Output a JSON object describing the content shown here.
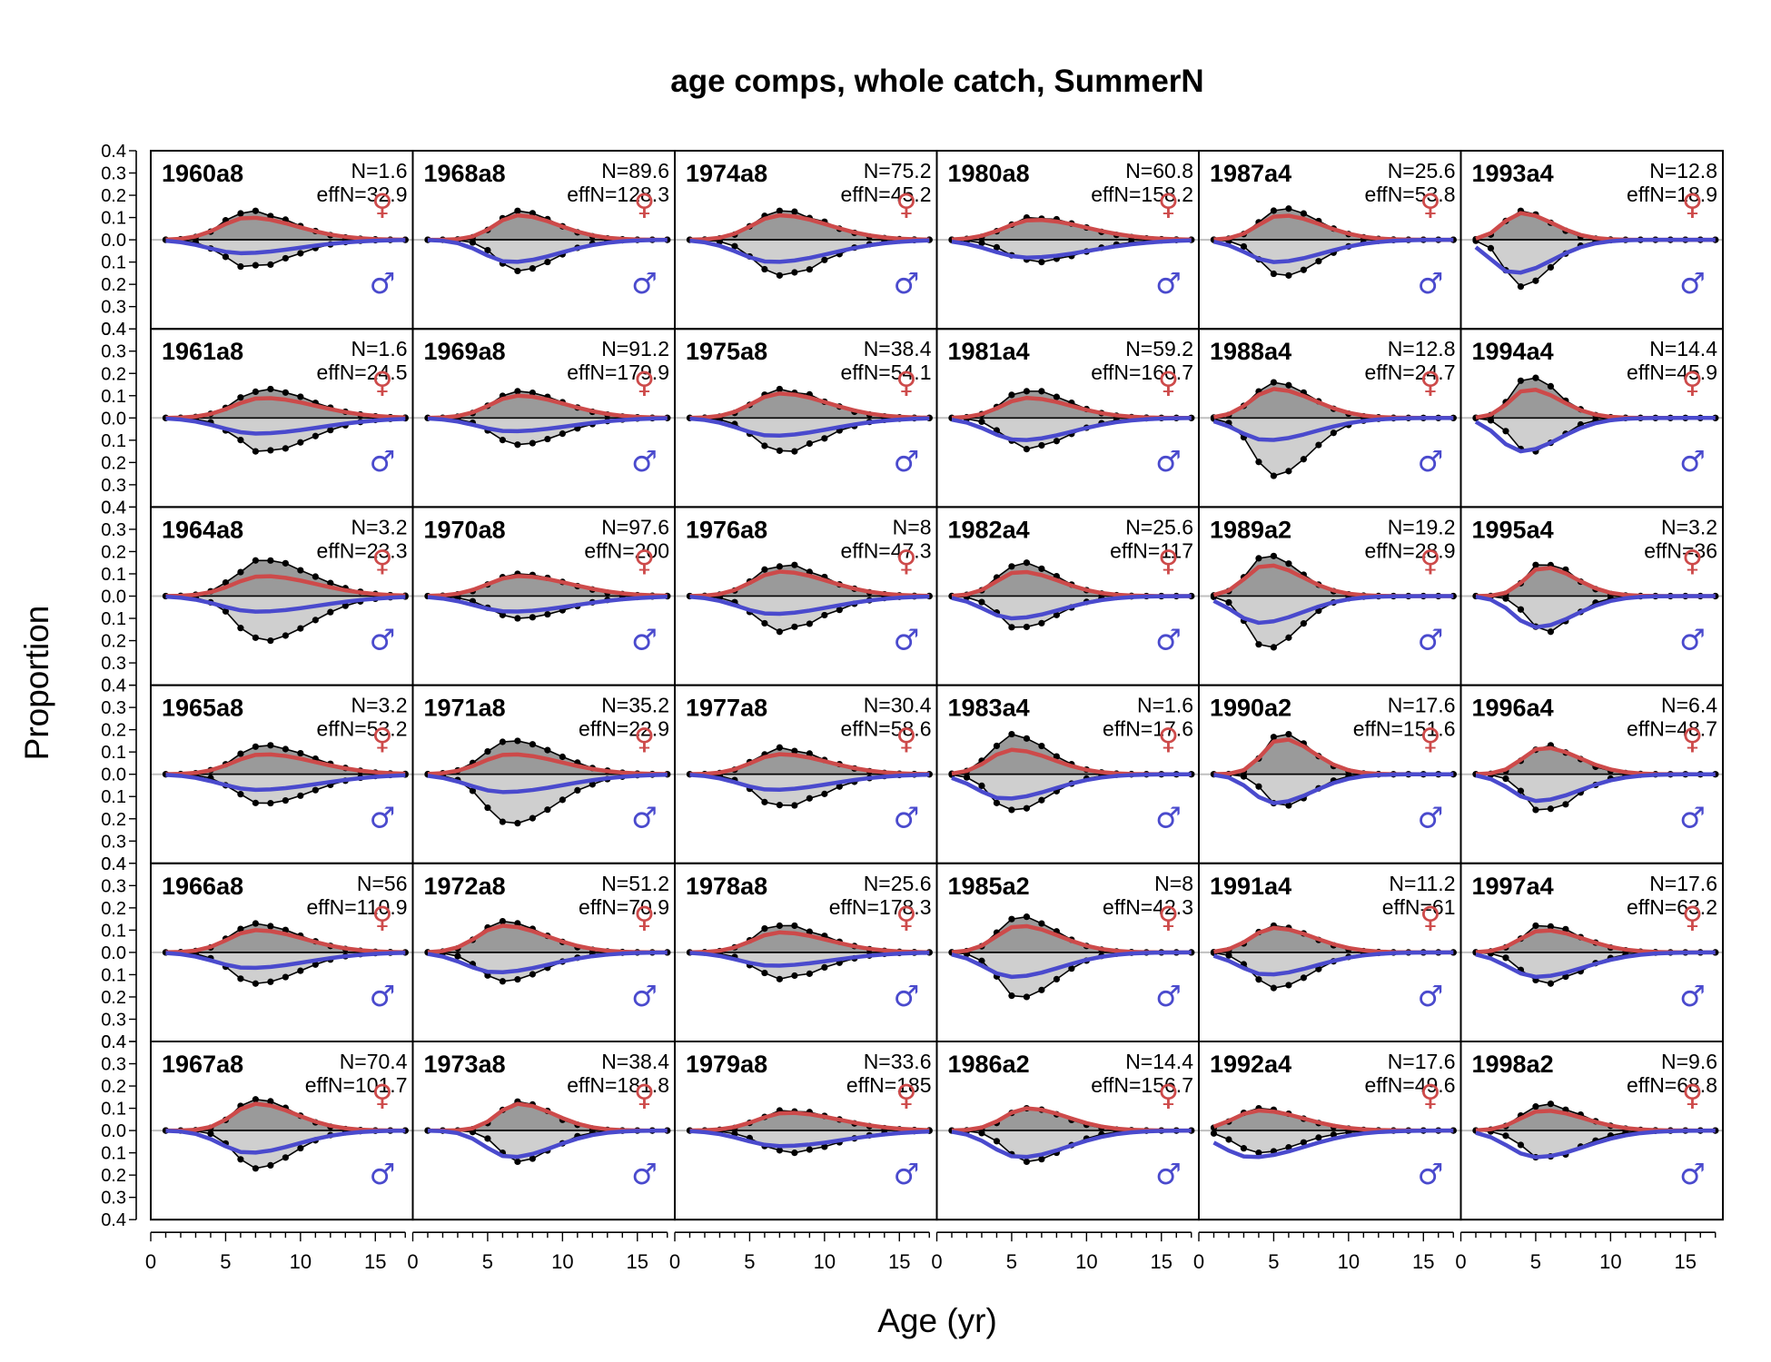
{
  "chart_data": {
    "type": "area",
    "title": "age comps, whole catch, SummerN",
    "xlabel": "Age (yr)",
    "ylabel": "Proportion",
    "xlim": [
      0,
      17.5
    ],
    "ylim": [
      -0.4,
      0.4
    ],
    "x_ticks": [
      "0",
      "5",
      "10",
      "15"
    ],
    "y_ticks": [
      "0.4",
      "0.3",
      "0.2",
      "0.1",
      "0.0",
      "0.1",
      "0.2",
      "0.3",
      "0.4"
    ],
    "grid": false,
    "female_symbol": "♀",
    "male_symbol": "♂",
    "colors": {
      "female_fit": "#cd4a4a",
      "male_fit": "#4a4acd",
      "female_fill": "#9a9a9a",
      "male_fill": "#cfcfcf",
      "zero_line": "#c0c0c0"
    },
    "series_names": [
      "observed female",
      "observed male",
      "expected female",
      "expected male"
    ],
    "rows": 6,
    "cols": 6,
    "panels": [
      {
        "label": "1960a8",
        "n": "N=1.6",
        "effn": "effN=32.9",
        "peak_age": 6.5,
        "spread": 2.4,
        "fem_peak": 0.1,
        "male_peak": 0.06,
        "obs_f": 0.13,
        "obs_m": 0.12
      },
      {
        "label": "1961a8",
        "n": "N=1.6",
        "effn": "effN=24.5",
        "peak_age": 7.5,
        "spread": 2.6,
        "fem_peak": 0.09,
        "male_peak": 0.07,
        "obs_f": 0.13,
        "obs_m": 0.15
      },
      {
        "label": "1964a8",
        "n": "N=3.2",
        "effn": "effN=23.3",
        "peak_age": 7.5,
        "spread": 2.6,
        "fem_peak": 0.09,
        "male_peak": 0.07,
        "obs_f": 0.16,
        "obs_m": 0.2
      },
      {
        "label": "1965a8",
        "n": "N=3.2",
        "effn": "effN=53.2",
        "peak_age": 7.5,
        "spread": 2.6,
        "fem_peak": 0.09,
        "male_peak": 0.07,
        "obs_f": 0.13,
        "obs_m": 0.13
      },
      {
        "label": "1966a8",
        "n": "N=56",
        "effn": "effN=110.9",
        "peak_age": 7.0,
        "spread": 2.4,
        "fem_peak": 0.1,
        "male_peak": 0.07,
        "obs_f": 0.13,
        "obs_m": 0.14
      },
      {
        "label": "1967a8",
        "n": "N=70.4",
        "effn": "effN=101.7",
        "peak_age": 7.0,
        "spread": 2.0,
        "fem_peak": 0.12,
        "male_peak": 0.1,
        "obs_f": 0.14,
        "obs_m": 0.17
      },
      {
        "label": "1968a8",
        "n": "N=89.6",
        "effn": "effN=128.3",
        "peak_age": 7.0,
        "spread": 2.0,
        "fem_peak": 0.11,
        "male_peak": 0.1,
        "obs_f": 0.13,
        "obs_m": 0.14
      },
      {
        "label": "1969a8",
        "n": "N=91.2",
        "effn": "effN=179.9",
        "peak_age": 7.0,
        "spread": 2.4,
        "fem_peak": 0.1,
        "male_peak": 0.06,
        "obs_f": 0.12,
        "obs_m": 0.12
      },
      {
        "label": "1970a8",
        "n": "N=97.6",
        "effn": "effN=200",
        "peak_age": 7.0,
        "spread": 2.6,
        "fem_peak": 0.09,
        "male_peak": 0.07,
        "obs_f": 0.1,
        "obs_m": 0.1
      },
      {
        "label": "1971a8",
        "n": "N=35.2",
        "effn": "effN=22.9",
        "peak_age": 6.5,
        "spread": 2.5,
        "fem_peak": 0.09,
        "male_peak": 0.08,
        "obs_f": 0.15,
        "obs_m": 0.22
      },
      {
        "label": "1972a8",
        "n": "N=51.2",
        "effn": "effN=70.9",
        "peak_age": 6.0,
        "spread": 2.2,
        "fem_peak": 0.12,
        "male_peak": 0.09,
        "obs_f": 0.14,
        "obs_m": 0.13
      },
      {
        "label": "1973a8",
        "n": "N=38.4",
        "effn": "effN=181.8",
        "peak_age": 7.0,
        "spread": 1.8,
        "fem_peak": 0.12,
        "male_peak": 0.12,
        "obs_f": 0.13,
        "obs_m": 0.14
      },
      {
        "label": "1974a8",
        "n": "N=75.2",
        "effn": "effN=45.2",
        "peak_age": 7.0,
        "spread": 2.4,
        "fem_peak": 0.11,
        "male_peak": 0.1,
        "obs_f": 0.13,
        "obs_m": 0.16
      },
      {
        "label": "1975a8",
        "n": "N=38.4",
        "effn": "effN=54.1",
        "peak_age": 7.0,
        "spread": 2.4,
        "fem_peak": 0.11,
        "male_peak": 0.08,
        "obs_f": 0.13,
        "obs_m": 0.15
      },
      {
        "label": "1976a8",
        "n": "N=8",
        "effn": "effN=47.3",
        "peak_age": 7.0,
        "spread": 2.4,
        "fem_peak": 0.11,
        "male_peak": 0.08,
        "obs_f": 0.14,
        "obs_m": 0.16
      },
      {
        "label": "1977a8",
        "n": "N=30.4",
        "effn": "effN=58.6",
        "peak_age": 7.0,
        "spread": 2.4,
        "fem_peak": 0.09,
        "male_peak": 0.07,
        "obs_f": 0.12,
        "obs_m": 0.14
      },
      {
        "label": "1978a8",
        "n": "N=25.6",
        "effn": "effN=178.3",
        "peak_age": 7.0,
        "spread": 2.4,
        "fem_peak": 0.09,
        "male_peak": 0.06,
        "obs_f": 0.12,
        "obs_m": 0.12
      },
      {
        "label": "1979a8",
        "n": "N=33.6",
        "effn": "effN=185",
        "peak_age": 7.5,
        "spread": 2.6,
        "fem_peak": 0.08,
        "male_peak": 0.07,
        "obs_f": 0.09,
        "obs_m": 0.1
      },
      {
        "label": "1980a8",
        "n": "N=60.8",
        "effn": "effN=158.2",
        "peak_age": 6.5,
        "spread": 2.6,
        "fem_peak": 0.09,
        "male_peak": 0.08,
        "obs_f": 0.1,
        "obs_m": 0.1
      },
      {
        "label": "1981a4",
        "n": "N=59.2",
        "effn": "effN=160.7",
        "peak_age": 6.0,
        "spread": 2.2,
        "fem_peak": 0.09,
        "male_peak": 0.1,
        "obs_f": 0.12,
        "obs_m": 0.14
      },
      {
        "label": "1982a4",
        "n": "N=25.6",
        "effn": "effN=117",
        "peak_age": 5.5,
        "spread": 2.0,
        "fem_peak": 0.11,
        "male_peak": 0.1,
        "obs_f": 0.15,
        "obs_m": 0.14
      },
      {
        "label": "1983a4",
        "n": "N=1.6",
        "effn": "effN=17.6",
        "peak_age": 5.0,
        "spread": 2.0,
        "fem_peak": 0.11,
        "male_peak": 0.11,
        "obs_f": 0.18,
        "obs_m": 0.16
      },
      {
        "label": "1985a2",
        "n": "N=8",
        "effn": "effN=42.3",
        "peak_age": 5.5,
        "spread": 2.0,
        "fem_peak": 0.12,
        "male_peak": 0.11,
        "obs_f": 0.16,
        "obs_m": 0.2
      },
      {
        "label": "1986a2",
        "n": "N=14.4",
        "effn": "effN=156.7",
        "peak_age": 6.0,
        "spread": 2.0,
        "fem_peak": 0.1,
        "male_peak": 0.12,
        "obs_f": 0.1,
        "obs_m": 0.14
      },
      {
        "label": "1987a4",
        "n": "N=25.6",
        "effn": "effN=53.8",
        "peak_age": 5.5,
        "spread": 2.0,
        "fem_peak": 0.11,
        "male_peak": 0.1,
        "obs_f": 0.14,
        "obs_m": 0.16
      },
      {
        "label": "1988a4",
        "n": "N=12.8",
        "effn": "effN=24.7",
        "peak_age": 5.0,
        "spread": 2.0,
        "fem_peak": 0.13,
        "male_peak": 0.1,
        "obs_f": 0.16,
        "obs_m": 0.26
      },
      {
        "label": "1989a2",
        "n": "N=19.2",
        "effn": "effN=28.9",
        "peak_age": 4.5,
        "spread": 1.8,
        "fem_peak": 0.14,
        "male_peak": 0.12,
        "obs_f": 0.18,
        "obs_m": 0.23
      },
      {
        "label": "1990a2",
        "n": "N=17.6",
        "effn": "effN=151.6",
        "peak_age": 5.5,
        "spread": 1.6,
        "fem_peak": 0.16,
        "male_peak": 0.13,
        "obs_f": 0.18,
        "obs_m": 0.14
      },
      {
        "label": "1991a4",
        "n": "N=11.2",
        "effn": "effN=61",
        "peak_age": 5.0,
        "spread": 2.0,
        "fem_peak": 0.11,
        "male_peak": 0.1,
        "obs_f": 0.12,
        "obs_m": 0.16
      },
      {
        "label": "1992a4",
        "n": "N=17.6",
        "effn": "effN=49.6",
        "peak_age": 4.0,
        "spread": 2.2,
        "fem_peak": 0.09,
        "male_peak": 0.12,
        "obs_f": 0.1,
        "obs_m": 0.1
      },
      {
        "label": "1993a4",
        "n": "N=12.8",
        "effn": "effN=18.9",
        "peak_age": 4.0,
        "spread": 1.6,
        "fem_peak": 0.12,
        "male_peak": 0.15,
        "obs_f": 0.13,
        "obs_m": 0.21
      },
      {
        "label": "1994a4",
        "n": "N=14.4",
        "effn": "effN=45.9",
        "peak_age": 4.5,
        "spread": 1.6,
        "fem_peak": 0.13,
        "male_peak": 0.15,
        "obs_f": 0.18,
        "obs_m": 0.15
      },
      {
        "label": "1995a4",
        "n": "N=3.2",
        "effn": "effN=36",
        "peak_age": 5.5,
        "spread": 1.6,
        "fem_peak": 0.13,
        "male_peak": 0.14,
        "obs_f": 0.14,
        "obs_m": 0.16
      },
      {
        "label": "1996a4",
        "n": "N=6.4",
        "effn": "effN=48.7",
        "peak_age": 5.5,
        "spread": 1.8,
        "fem_peak": 0.12,
        "male_peak": 0.12,
        "obs_f": 0.13,
        "obs_m": 0.16
      },
      {
        "label": "1997a4",
        "n": "N=17.6",
        "effn": "effN=63.2",
        "peak_age": 5.5,
        "spread": 2.0,
        "fem_peak": 0.1,
        "male_peak": 0.11,
        "obs_f": 0.12,
        "obs_m": 0.14
      },
      {
        "label": "1998a2",
        "n": "N=9.6",
        "effn": "effN=68.8",
        "peak_age": 5.5,
        "spread": 2.0,
        "fem_peak": 0.09,
        "male_peak": 0.12,
        "obs_f": 0.12,
        "obs_m": 0.12
      }
    ]
  }
}
